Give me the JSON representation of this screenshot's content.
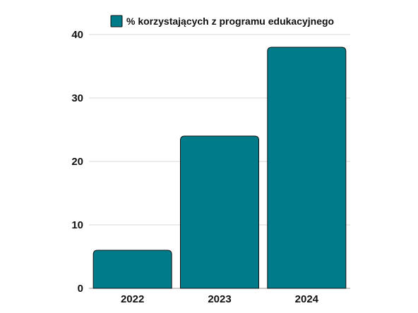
{
  "chart_data": {
    "type": "bar",
    "categories": [
      "2022",
      "2023",
      "2024"
    ],
    "series": [
      {
        "name": "% korzystających z programu edukacyjnego",
        "values": [
          6,
          24,
          38
        ],
        "color": "#007B8A"
      }
    ],
    "title": "",
    "xlabel": "",
    "ylabel": "",
    "ylim": [
      0,
      40
    ],
    "yticks": [
      "0",
      "10",
      "20",
      "30",
      "40"
    ],
    "grid": true,
    "legend_position": "top-center"
  }
}
